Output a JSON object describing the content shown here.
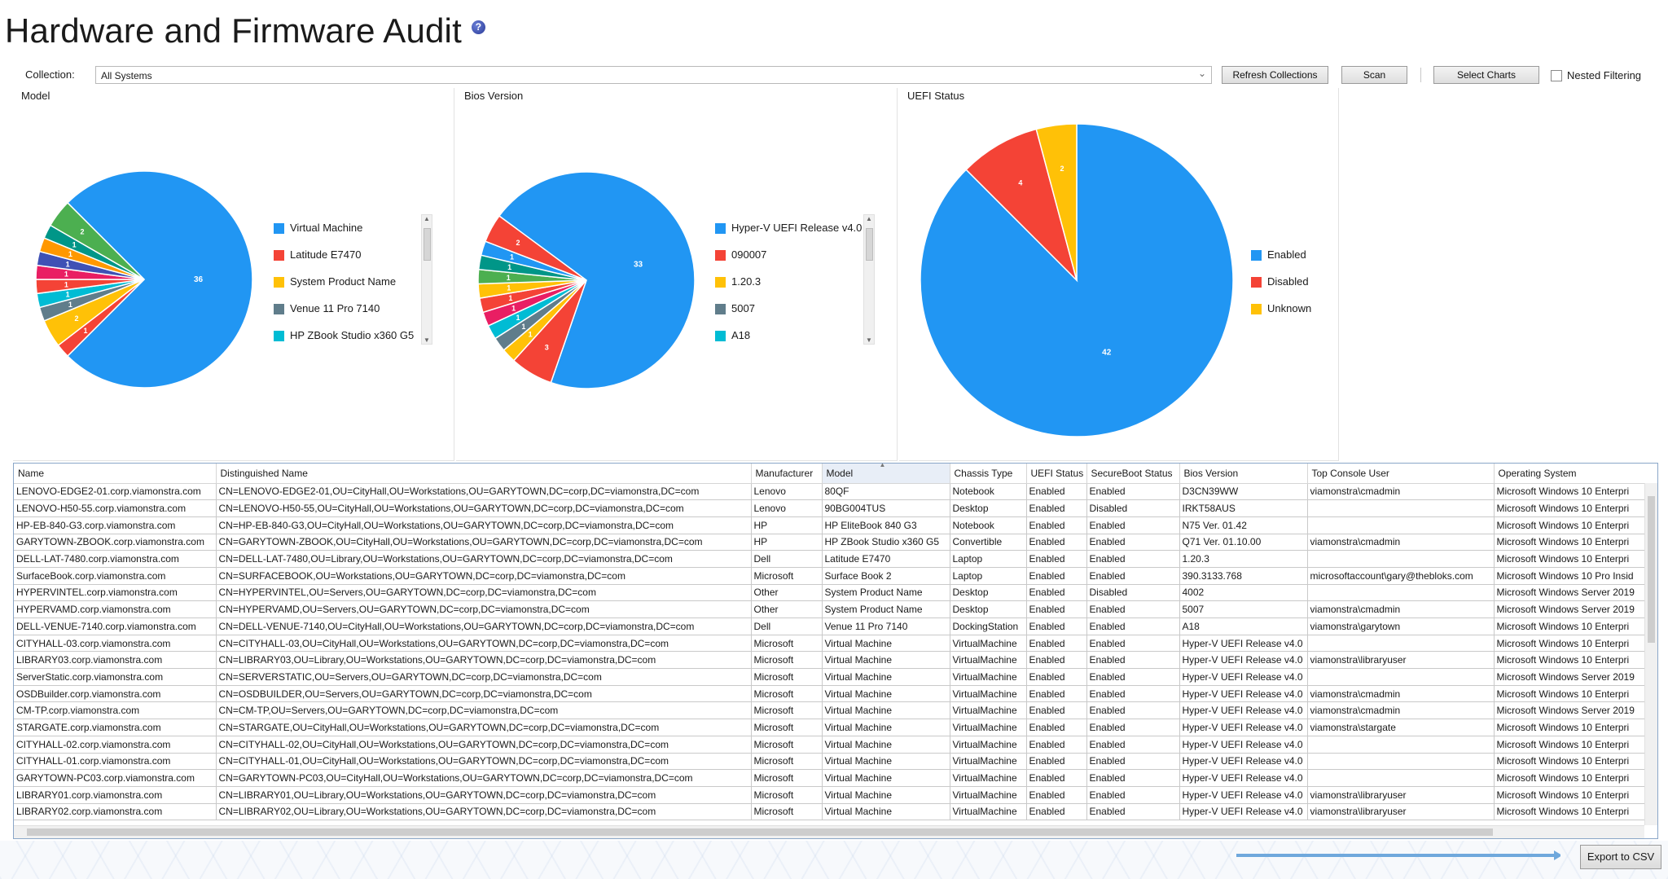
{
  "title": "Hardware and Firmware Audit",
  "help_icon": "?",
  "toolbar": {
    "collection_label": "Collection:",
    "collection_value": "All Systems",
    "refresh_label": "Refresh Collections",
    "scan_label": "Scan",
    "select_charts_label": "Select Charts",
    "nested_filtering_label": "Nested Filtering",
    "nested_filtering_checked": false
  },
  "chart_data": [
    {
      "type": "pie",
      "title": "Model",
      "slices": [
        {
          "label": "Virtual Machine",
          "value": 36,
          "color": "#2196F3"
        },
        {
          "label": "Latitude E7470",
          "value": 1,
          "color": "#F44336"
        },
        {
          "label": "System Product Name",
          "value": 2,
          "color": "#FFC107"
        },
        {
          "label": "Venue 11 Pro 7140",
          "value": 1,
          "color": "#607D8B"
        },
        {
          "label": "HP ZBook Studio x360 G5",
          "value": 1,
          "color": "#00BCD4"
        },
        {
          "label": "",
          "value": 1,
          "color": "#F44336"
        },
        {
          "label": "",
          "value": 1,
          "color": "#E91E63"
        },
        {
          "label": "",
          "value": 1,
          "color": "#3F51B5"
        },
        {
          "label": "",
          "value": 1,
          "color": "#FF9800"
        },
        {
          "label": "",
          "value": 1,
          "color": "#009688"
        },
        {
          "label": "",
          "value": 2,
          "color": "#4CAF50"
        }
      ],
      "slice_labels": [
        "36",
        "1",
        "2",
        "1",
        "1",
        "1",
        "1",
        "1",
        "1",
        "1",
        "2"
      ],
      "legend": [
        "Virtual Machine",
        "Latitude E7470",
        "System Product Name",
        "Venue 11 Pro 7140",
        "HP ZBook Studio x360 G5"
      ]
    },
    {
      "type": "pie",
      "title": "Bios Version",
      "slices": [
        {
          "label": "Hyper-V UEFI Release v4.0",
          "value": 33,
          "color": "#2196F3"
        },
        {
          "label": "090007",
          "value": 3,
          "color": "#F44336"
        },
        {
          "label": "1.20.3",
          "value": 1,
          "color": "#FFC107"
        },
        {
          "label": "5007",
          "value": 1,
          "color": "#607D8B"
        },
        {
          "label": "A18",
          "value": 1,
          "color": "#00BCD4"
        },
        {
          "label": "",
          "value": 1,
          "color": "#E91E63"
        },
        {
          "label": "",
          "value": 1,
          "color": "#F44336"
        },
        {
          "label": "",
          "value": 1,
          "color": "#FFC107"
        },
        {
          "label": "",
          "value": 1,
          "color": "#4CAF50"
        },
        {
          "label": "",
          "value": 1,
          "color": "#009688"
        },
        {
          "label": "",
          "value": 1,
          "color": "#2196F3"
        },
        {
          "label": "",
          "value": 2,
          "color": "#F44336"
        }
      ],
      "slice_labels": [
        "33",
        "3",
        "1",
        "1",
        "1",
        "1",
        "1",
        "1",
        "1",
        "1",
        "1",
        "2"
      ],
      "legend": [
        "Hyper-V UEFI Release v4.0",
        "090007",
        "1.20.3",
        "5007",
        "A18"
      ]
    },
    {
      "type": "pie",
      "title": "UEFI Status",
      "slices": [
        {
          "label": "Enabled",
          "value": 42,
          "color": "#2196F3"
        },
        {
          "label": "Disabled",
          "value": 4,
          "color": "#F44336"
        },
        {
          "label": "Unknown",
          "value": 2,
          "color": "#FFC107"
        }
      ],
      "slice_labels": [
        "42",
        "4",
        "2"
      ],
      "legend": [
        "Enabled",
        "Disabled",
        "Unknown"
      ]
    }
  ],
  "grid": {
    "columns": [
      "Name",
      "Distinguished Name",
      "Manufacturer",
      "Model",
      "Chassis Type",
      "UEFI Status",
      "SecureBoot Status",
      "Bios Version",
      "Top Console User",
      "Operating System"
    ],
    "sorted_column": "Model",
    "rows": [
      [
        "LENOVO-EDGE2-01.corp.viamonstra.com",
        "CN=LENOVO-EDGE2-01,OU=CityHall,OU=Workstations,OU=GARYTOWN,DC=corp,DC=viamonstra,DC=com",
        "Lenovo",
        "80QF",
        "Notebook",
        "Enabled",
        "Enabled",
        "D3CN39WW",
        "viamonstra\\cmadmin",
        "Microsoft Windows 10 Enterpri"
      ],
      [
        "LENOVO-H50-55.corp.viamonstra.com",
        "CN=LENOVO-H50-55,OU=CityHall,OU=Workstations,OU=GARYTOWN,DC=corp,DC=viamonstra,DC=com",
        "Lenovo",
        "90BG004TUS",
        "Desktop",
        "Enabled",
        "Disabled",
        "IRKT58AUS",
        "",
        "Microsoft Windows 10 Enterpri"
      ],
      [
        "HP-EB-840-G3.corp.viamonstra.com",
        "CN=HP-EB-840-G3,OU=CityHall,OU=Workstations,OU=GARYTOWN,DC=corp,DC=viamonstra,DC=com",
        "HP",
        "HP EliteBook 840 G3",
        "Notebook",
        "Enabled",
        "Enabled",
        "N75 Ver. 01.42",
        "",
        "Microsoft Windows 10 Enterpri"
      ],
      [
        "GARYTOWN-ZBOOK.corp.viamonstra.com",
        "CN=GARYTOWN-ZBOOK,OU=CityHall,OU=Workstations,OU=GARYTOWN,DC=corp,DC=viamonstra,DC=com",
        "HP",
        "HP ZBook Studio x360 G5",
        "Convertible",
        "Enabled",
        "Enabled",
        "Q71 Ver. 01.10.00",
        "viamonstra\\cmadmin",
        "Microsoft Windows 10 Enterpri"
      ],
      [
        "DELL-LAT-7480.corp.viamonstra.com",
        "CN=DELL-LAT-7480,OU=Library,OU=Workstations,OU=GARYTOWN,DC=corp,DC=viamonstra,DC=com",
        "Dell",
        "Latitude E7470",
        "Laptop",
        "Enabled",
        "Enabled",
        "1.20.3",
        "",
        "Microsoft Windows 10 Enterpri"
      ],
      [
        "SurfaceBook.corp.viamonstra.com",
        "CN=SURFACEBOOK,OU=Workstations,OU=GARYTOWN,DC=corp,DC=viamonstra,DC=com",
        "Microsoft",
        "Surface Book 2",
        "Laptop",
        "Enabled",
        "Enabled",
        "390.3133.768",
        "microsoftaccount\\gary@thebloks.com",
        "Microsoft Windows 10 Pro Insid"
      ],
      [
        "HYPERVINTEL.corp.viamonstra.com",
        "CN=HYPERVINTEL,OU=Servers,OU=GARYTOWN,DC=corp,DC=viamonstra,DC=com",
        "Other",
        "System Product Name",
        "Desktop",
        "Enabled",
        "Disabled",
        "4002",
        "",
        "Microsoft Windows Server 2019"
      ],
      [
        "HYPERVAMD.corp.viamonstra.com",
        "CN=HYPERVAMD,OU=Servers,OU=GARYTOWN,DC=corp,DC=viamonstra,DC=com",
        "Other",
        "System Product Name",
        "Desktop",
        "Enabled",
        "Enabled",
        "5007",
        "viamonstra\\cmadmin",
        "Microsoft Windows Server 2019"
      ],
      [
        "DELL-VENUE-7140.corp.viamonstra.com",
        "CN=DELL-VENUE-7140,OU=CityHall,OU=Workstations,OU=GARYTOWN,DC=corp,DC=viamonstra,DC=com",
        "Dell",
        "Venue 11 Pro 7140",
        "DockingStation",
        "Enabled",
        "Enabled",
        "A18",
        "viamonstra\\garytown",
        "Microsoft Windows 10 Enterpri"
      ],
      [
        "CITYHALL-03.corp.viamonstra.com",
        "CN=CITYHALL-03,OU=CityHall,OU=Workstations,OU=GARYTOWN,DC=corp,DC=viamonstra,DC=com",
        "Microsoft",
        "Virtual Machine",
        "VirtualMachine",
        "Enabled",
        "Enabled",
        "Hyper-V UEFI Release v4.0",
        "",
        "Microsoft Windows 10 Enterpri"
      ],
      [
        "LIBRARY03.corp.viamonstra.com",
        "CN=LIBRARY03,OU=Library,OU=Workstations,OU=GARYTOWN,DC=corp,DC=viamonstra,DC=com",
        "Microsoft",
        "Virtual Machine",
        "VirtualMachine",
        "Enabled",
        "Enabled",
        "Hyper-V UEFI Release v4.0",
        "viamonstra\\libraryuser",
        "Microsoft Windows 10 Enterpri"
      ],
      [
        "ServerStatic.corp.viamonstra.com",
        "CN=SERVERSTATIC,OU=Servers,OU=GARYTOWN,DC=corp,DC=viamonstra,DC=com",
        "Microsoft",
        "Virtual Machine",
        "VirtualMachine",
        "Enabled",
        "Enabled",
        "Hyper-V UEFI Release v4.0",
        "",
        "Microsoft Windows Server 2019"
      ],
      [
        "OSDBuilder.corp.viamonstra.com",
        "CN=OSDBUILDER,OU=Servers,OU=GARYTOWN,DC=corp,DC=viamonstra,DC=com",
        "Microsoft",
        "Virtual Machine",
        "VirtualMachine",
        "Enabled",
        "Enabled",
        "Hyper-V UEFI Release v4.0",
        "viamonstra\\cmadmin",
        "Microsoft Windows 10 Enterpri"
      ],
      [
        "CM-TP.corp.viamonstra.com",
        "CN=CM-TP,OU=Servers,OU=GARYTOWN,DC=corp,DC=viamonstra,DC=com",
        "Microsoft",
        "Virtual Machine",
        "VirtualMachine",
        "Enabled",
        "Enabled",
        "Hyper-V UEFI Release v4.0",
        "viamonstra\\cmadmin",
        "Microsoft Windows Server 2019"
      ],
      [
        "STARGATE.corp.viamonstra.com",
        "CN=STARGATE,OU=CityHall,OU=Workstations,OU=GARYTOWN,DC=corp,DC=viamonstra,DC=com",
        "Microsoft",
        "Virtual Machine",
        "VirtualMachine",
        "Enabled",
        "Enabled",
        "Hyper-V UEFI Release v4.0",
        "viamonstra\\stargate",
        "Microsoft Windows 10 Enterpri"
      ],
      [
        "CITYHALL-02.corp.viamonstra.com",
        "CN=CITYHALL-02,OU=CityHall,OU=Workstations,OU=GARYTOWN,DC=corp,DC=viamonstra,DC=com",
        "Microsoft",
        "Virtual Machine",
        "VirtualMachine",
        "Enabled",
        "Enabled",
        "Hyper-V UEFI Release v4.0",
        "",
        "Microsoft Windows 10 Enterpri"
      ],
      [
        "CITYHALL-01.corp.viamonstra.com",
        "CN=CITYHALL-01,OU=CityHall,OU=Workstations,OU=GARYTOWN,DC=corp,DC=viamonstra,DC=com",
        "Microsoft",
        "Virtual Machine",
        "VirtualMachine",
        "Enabled",
        "Enabled",
        "Hyper-V UEFI Release v4.0",
        "",
        "Microsoft Windows 10 Enterpri"
      ],
      [
        "GARYTOWN-PC03.corp.viamonstra.com",
        "CN=GARYTOWN-PC03,OU=CityHall,OU=Workstations,OU=GARYTOWN,DC=corp,DC=viamonstra,DC=com",
        "Microsoft",
        "Virtual Machine",
        "VirtualMachine",
        "Enabled",
        "Enabled",
        "Hyper-V UEFI Release v4.0",
        "",
        "Microsoft Windows 10 Enterpri"
      ],
      [
        "LIBRARY01.corp.viamonstra.com",
        "CN=LIBRARY01,OU=Library,OU=Workstations,OU=GARYTOWN,DC=corp,DC=viamonstra,DC=com",
        "Microsoft",
        "Virtual Machine",
        "VirtualMachine",
        "Enabled",
        "Enabled",
        "Hyper-V UEFI Release v4.0",
        "viamonstra\\libraryuser",
        "Microsoft Windows 10 Enterpri"
      ],
      [
        "LIBRARY02.corp.viamonstra.com",
        "CN=LIBRARY02,OU=Library,OU=Workstations,OU=GARYTOWN,DC=corp,DC=viamonstra,DC=com",
        "Microsoft",
        "Virtual Machine",
        "VirtualMachine",
        "Enabled",
        "Enabled",
        "Hyper-V UEFI Release v4.0",
        "viamonstra\\libraryuser",
        "Microsoft Windows 10 Enterpri"
      ]
    ]
  },
  "export_label": "Export to CSV",
  "colors": {
    "accent_arrow": "#6fa8dc",
    "grid_border": "#8aa6c8"
  }
}
